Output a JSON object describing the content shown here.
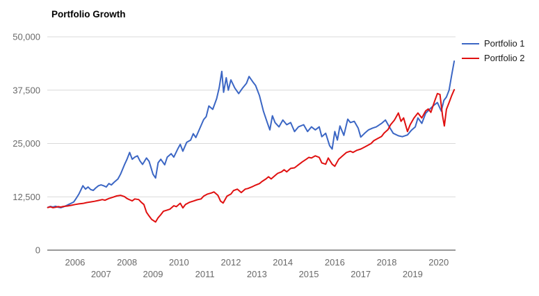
{
  "title": "Portfolio Growth",
  "legend": {
    "items": [
      {
        "label": "Portfolio 1",
        "color": "#3b66c4"
      },
      {
        "label": "Portfolio 2",
        "color": "#e01010"
      }
    ],
    "position": "top-right"
  },
  "chart_data": {
    "type": "line",
    "title": "Portfolio Growth",
    "xlabel": "",
    "ylabel": "",
    "xlim": [
      2004.93,
      2020.65
    ],
    "ylim": [
      0,
      50000
    ],
    "grid": "horizontal",
    "legend_position": "top-right",
    "x_ticks": [
      2006,
      2007,
      2008,
      2009,
      2010,
      2011,
      2012,
      2013,
      2014,
      2015,
      2016,
      2017,
      2018,
      2019,
      2020
    ],
    "x_tick_layout": "staggered-even-top",
    "y_ticks": [
      0,
      12500,
      25000,
      37500,
      50000
    ],
    "y_tick_labels": [
      "0",
      "12,500",
      "25,000",
      "37,500",
      "50,000"
    ],
    "grid_color": "#d9d9d9",
    "axis_color": "#333333",
    "tick_label_color": "#696969",
    "series": [
      {
        "name": "Portfolio 1",
        "color": "#3b66c4",
        "points": [
          [
            2004.95,
            10000
          ],
          [
            2005.05,
            10250
          ],
          [
            2005.15,
            10100
          ],
          [
            2005.25,
            10300
          ],
          [
            2005.35,
            10050
          ],
          [
            2005.45,
            9950
          ],
          [
            2005.55,
            10150
          ],
          [
            2005.65,
            10400
          ],
          [
            2005.75,
            10700
          ],
          [
            2005.85,
            11000
          ],
          [
            2005.95,
            11300
          ],
          [
            2006.05,
            12200
          ],
          [
            2006.15,
            13200
          ],
          [
            2006.3,
            15100
          ],
          [
            2006.4,
            14300
          ],
          [
            2006.5,
            14800
          ],
          [
            2006.6,
            14200
          ],
          [
            2006.7,
            14000
          ],
          [
            2006.8,
            14600
          ],
          [
            2006.9,
            15100
          ],
          [
            2007.0,
            15300
          ],
          [
            2007.1,
            15100
          ],
          [
            2007.2,
            14800
          ],
          [
            2007.3,
            15600
          ],
          [
            2007.4,
            15300
          ],
          [
            2007.5,
            15900
          ],
          [
            2007.65,
            16700
          ],
          [
            2007.75,
            17800
          ],
          [
            2007.9,
            20000
          ],
          [
            2008.0,
            21300
          ],
          [
            2008.1,
            22900
          ],
          [
            2008.2,
            21300
          ],
          [
            2008.3,
            21800
          ],
          [
            2008.4,
            22100
          ],
          [
            2008.5,
            20900
          ],
          [
            2008.6,
            20100
          ],
          [
            2008.75,
            21600
          ],
          [
            2008.85,
            20800
          ],
          [
            2009.0,
            17800
          ],
          [
            2009.1,
            16900
          ],
          [
            2009.2,
            20500
          ],
          [
            2009.3,
            21300
          ],
          [
            2009.45,
            20000
          ],
          [
            2009.55,
            21800
          ],
          [
            2009.7,
            22600
          ],
          [
            2009.8,
            21800
          ],
          [
            2009.95,
            23700
          ],
          [
            2010.05,
            24800
          ],
          [
            2010.15,
            23200
          ],
          [
            2010.3,
            25300
          ],
          [
            2010.45,
            25800
          ],
          [
            2010.55,
            27300
          ],
          [
            2010.65,
            26400
          ],
          [
            2010.8,
            28500
          ],
          [
            2010.95,
            30600
          ],
          [
            2011.05,
            31300
          ],
          [
            2011.15,
            33800
          ],
          [
            2011.3,
            33000
          ],
          [
            2011.45,
            35500
          ],
          [
            2011.55,
            38100
          ],
          [
            2011.65,
            41900
          ],
          [
            2011.72,
            37000
          ],
          [
            2011.82,
            40400
          ],
          [
            2011.9,
            37500
          ],
          [
            2012.0,
            39900
          ],
          [
            2012.15,
            38000
          ],
          [
            2012.3,
            36700
          ],
          [
            2012.45,
            38000
          ],
          [
            2012.6,
            39100
          ],
          [
            2012.7,
            40700
          ],
          [
            2012.85,
            39400
          ],
          [
            2012.95,
            38600
          ],
          [
            2013.1,
            36200
          ],
          [
            2013.25,
            32600
          ],
          [
            2013.4,
            29900
          ],
          [
            2013.5,
            28200
          ],
          [
            2013.6,
            31500
          ],
          [
            2013.7,
            29900
          ],
          [
            2013.85,
            28900
          ],
          [
            2014.0,
            30500
          ],
          [
            2014.15,
            29400
          ],
          [
            2014.3,
            29900
          ],
          [
            2014.45,
            27800
          ],
          [
            2014.6,
            28900
          ],
          [
            2014.8,
            29400
          ],
          [
            2014.95,
            27800
          ],
          [
            2015.1,
            28900
          ],
          [
            2015.25,
            28200
          ],
          [
            2015.4,
            28900
          ],
          [
            2015.5,
            26600
          ],
          [
            2015.65,
            27400
          ],
          [
            2015.8,
            24500
          ],
          [
            2015.9,
            23700
          ],
          [
            2016.0,
            27800
          ],
          [
            2016.1,
            25800
          ],
          [
            2016.2,
            29100
          ],
          [
            2016.35,
            26900
          ],
          [
            2016.5,
            30700
          ],
          [
            2016.6,
            29900
          ],
          [
            2016.75,
            30200
          ],
          [
            2016.9,
            28600
          ],
          [
            2017.0,
            26500
          ],
          [
            2017.15,
            27400
          ],
          [
            2017.3,
            28200
          ],
          [
            2017.45,
            28600
          ],
          [
            2017.6,
            28900
          ],
          [
            2017.8,
            29700
          ],
          [
            2017.95,
            30500
          ],
          [
            2018.1,
            28900
          ],
          [
            2018.25,
            27400
          ],
          [
            2018.45,
            26800
          ],
          [
            2018.6,
            26600
          ],
          [
            2018.8,
            27000
          ],
          [
            2018.95,
            28100
          ],
          [
            2019.1,
            28900
          ],
          [
            2019.2,
            31000
          ],
          [
            2019.35,
            29700
          ],
          [
            2019.5,
            32100
          ],
          [
            2019.65,
            33000
          ],
          [
            2019.8,
            33900
          ],
          [
            2019.95,
            34600
          ],
          [
            2020.1,
            32600
          ],
          [
            2020.2,
            35100
          ],
          [
            2020.3,
            35900
          ],
          [
            2020.4,
            37500
          ],
          [
            2020.5,
            41000
          ],
          [
            2020.6,
            44300
          ]
        ]
      },
      {
        "name": "Portfolio 2",
        "color": "#e01010",
        "points": [
          [
            2004.95,
            10000
          ],
          [
            2005.05,
            10150
          ],
          [
            2005.15,
            9950
          ],
          [
            2005.25,
            10050
          ],
          [
            2005.35,
            10200
          ],
          [
            2005.45,
            10100
          ],
          [
            2005.55,
            10250
          ],
          [
            2005.7,
            10350
          ],
          [
            2005.85,
            10500
          ],
          [
            2006.0,
            10700
          ],
          [
            2006.15,
            10850
          ],
          [
            2006.3,
            10950
          ],
          [
            2006.45,
            11150
          ],
          [
            2006.6,
            11300
          ],
          [
            2006.75,
            11450
          ],
          [
            2006.9,
            11650
          ],
          [
            2007.05,
            11850
          ],
          [
            2007.15,
            11700
          ],
          [
            2007.3,
            12100
          ],
          [
            2007.45,
            12400
          ],
          [
            2007.6,
            12700
          ],
          [
            2007.75,
            12850
          ],
          [
            2007.9,
            12550
          ],
          [
            2008.0,
            12100
          ],
          [
            2008.1,
            11800
          ],
          [
            2008.2,
            11550
          ],
          [
            2008.3,
            12000
          ],
          [
            2008.45,
            11850
          ],
          [
            2008.55,
            11200
          ],
          [
            2008.65,
            10700
          ],
          [
            2008.75,
            8900
          ],
          [
            2008.85,
            8000
          ],
          [
            2008.95,
            7200
          ],
          [
            2009.1,
            6600
          ],
          [
            2009.2,
            7600
          ],
          [
            2009.3,
            8300
          ],
          [
            2009.4,
            9100
          ],
          [
            2009.55,
            9400
          ],
          [
            2009.65,
            9600
          ],
          [
            2009.8,
            10400
          ],
          [
            2009.9,
            10200
          ],
          [
            2010.05,
            11000
          ],
          [
            2010.15,
            9900
          ],
          [
            2010.25,
            10700
          ],
          [
            2010.4,
            11200
          ],
          [
            2010.55,
            11500
          ],
          [
            2010.7,
            11800
          ],
          [
            2010.85,
            12000
          ],
          [
            2010.95,
            12650
          ],
          [
            2011.1,
            13150
          ],
          [
            2011.25,
            13400
          ],
          [
            2011.35,
            13650
          ],
          [
            2011.5,
            12850
          ],
          [
            2011.6,
            11500
          ],
          [
            2011.7,
            11050
          ],
          [
            2011.85,
            12650
          ],
          [
            2012.0,
            13150
          ],
          [
            2012.1,
            13950
          ],
          [
            2012.25,
            14300
          ],
          [
            2012.4,
            13500
          ],
          [
            2012.55,
            14300
          ],
          [
            2012.65,
            14450
          ],
          [
            2012.8,
            14800
          ],
          [
            2012.95,
            15250
          ],
          [
            2013.1,
            15600
          ],
          [
            2013.2,
            16100
          ],
          [
            2013.35,
            16700
          ],
          [
            2013.45,
            17200
          ],
          [
            2013.55,
            16700
          ],
          [
            2013.7,
            17500
          ],
          [
            2013.8,
            18000
          ],
          [
            2013.95,
            18350
          ],
          [
            2014.05,
            18850
          ],
          [
            2014.15,
            18350
          ],
          [
            2014.3,
            19150
          ],
          [
            2014.45,
            19300
          ],
          [
            2014.6,
            20000
          ],
          [
            2014.75,
            20700
          ],
          [
            2014.9,
            21300
          ],
          [
            2015.0,
            21750
          ],
          [
            2015.1,
            21600
          ],
          [
            2015.25,
            22100
          ],
          [
            2015.4,
            21750
          ],
          [
            2015.5,
            20450
          ],
          [
            2015.65,
            20150
          ],
          [
            2015.75,
            21600
          ],
          [
            2015.9,
            20150
          ],
          [
            2016.0,
            19650
          ],
          [
            2016.15,
            21300
          ],
          [
            2016.3,
            22100
          ],
          [
            2016.45,
            22900
          ],
          [
            2016.6,
            23200
          ],
          [
            2016.7,
            22900
          ],
          [
            2016.85,
            23400
          ],
          [
            2017.0,
            23700
          ],
          [
            2017.1,
            24000
          ],
          [
            2017.25,
            24500
          ],
          [
            2017.4,
            25000
          ],
          [
            2017.5,
            25650
          ],
          [
            2017.65,
            26150
          ],
          [
            2017.8,
            26650
          ],
          [
            2017.9,
            27450
          ],
          [
            2018.05,
            28250
          ],
          [
            2018.15,
            29400
          ],
          [
            2018.3,
            30500
          ],
          [
            2018.45,
            32150
          ],
          [
            2018.55,
            30200
          ],
          [
            2018.65,
            31000
          ],
          [
            2018.8,
            27800
          ],
          [
            2018.9,
            29400
          ],
          [
            2019.05,
            31000
          ],
          [
            2019.2,
            32150
          ],
          [
            2019.35,
            31000
          ],
          [
            2019.5,
            32650
          ],
          [
            2019.6,
            33100
          ],
          [
            2019.7,
            32300
          ],
          [
            2019.85,
            35000
          ],
          [
            2019.95,
            36700
          ],
          [
            2020.05,
            36500
          ],
          [
            2020.15,
            31500
          ],
          [
            2020.22,
            29100
          ],
          [
            2020.3,
            33000
          ],
          [
            2020.4,
            34600
          ],
          [
            2020.5,
            36200
          ],
          [
            2020.6,
            37600
          ]
        ]
      }
    ]
  }
}
